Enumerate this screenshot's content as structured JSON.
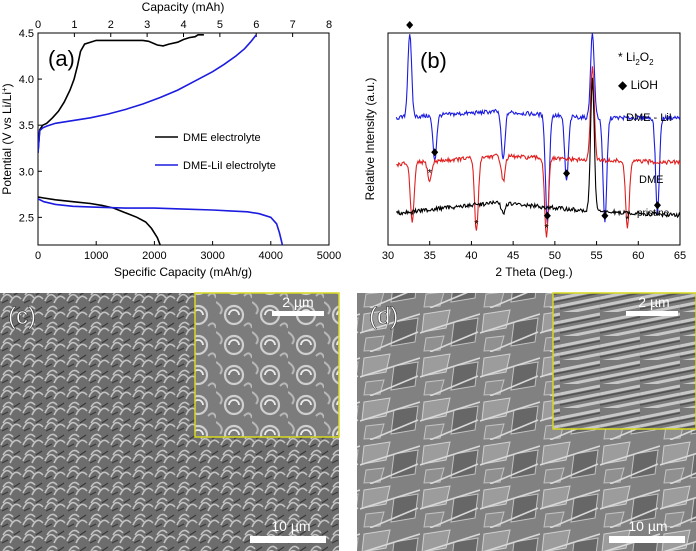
{
  "panel_a": {
    "label": "(a)",
    "top_axis_title": "Capacity (mAh)",
    "x_title": "Specific Capacity (mAh/g)",
    "y_title_parts": [
      "Potential (V vs Li/Li",
      "+",
      ")"
    ],
    "legend": [
      "DME electrolyte",
      "DME-LiI electrolyte"
    ]
  },
  "panel_b": {
    "label": "(b)",
    "x_title": "2 Theta (Deg.)",
    "y_title": "Relative Intensity (a.u.)",
    "legend_li2o2_parts": [
      "* Li",
      "2",
      "O",
      "2"
    ],
    "legend_lioh": "◆ LiOH",
    "series_labels": [
      "DME - LiI",
      "DME",
      "pristine"
    ]
  },
  "panel_c": {
    "label": "(c)",
    "scale_main": "10 µm",
    "scale_inset": "2 µm"
  },
  "panel_d": {
    "label": "(d)",
    "scale_main": "10 µm",
    "scale_inset": "2 µm"
  },
  "colors": {
    "dme": "#000000",
    "lii": "#1c1ce0",
    "red": "#e02020",
    "inset_border": "#d8d820"
  },
  "chart_data": [
    {
      "type": "line",
      "xlabel": "Specific Capacity (mAh/g)",
      "ylabel": "Potential (V vs Li/Li+)",
      "x2label": "Capacity (mAh)",
      "xlim": [
        0,
        5000
      ],
      "ylim": [
        2.2,
        4.5
      ],
      "x2lim": [
        0,
        8
      ],
      "xticks": [
        0,
        1000,
        2000,
        3000,
        4000,
        5000
      ],
      "yticks": [
        2.5,
        3.0,
        3.5,
        4.0,
        4.5
      ],
      "x2ticks": [
        0,
        1,
        2,
        3,
        4,
        5,
        6,
        7,
        8
      ],
      "legend_position": "right",
      "series": [
        {
          "name": "DME electrolyte",
          "color": "#000000",
          "segment": "discharge",
          "x": [
            0,
            100,
            300,
            600,
            900,
            1100,
            1300,
            1500,
            1700,
            1850,
            1950,
            2050,
            2100
          ],
          "y": [
            2.72,
            2.71,
            2.69,
            2.67,
            2.65,
            2.63,
            2.6,
            2.55,
            2.5,
            2.45,
            2.38,
            2.28,
            2.2
          ]
        },
        {
          "name": "DME electrolyte",
          "color": "#000000",
          "segment": "charge",
          "x": [
            0,
            30,
            80,
            150,
            250,
            350,
            450,
            550,
            620,
            680,
            730,
            800,
            900,
            1000,
            1200,
            1400,
            1600,
            1800,
            1900,
            2050,
            2150,
            2250,
            2400,
            2500,
            2600,
            2700,
            2750,
            2850
          ],
          "y": [
            3.2,
            3.45,
            3.5,
            3.52,
            3.58,
            3.65,
            3.75,
            3.88,
            4.0,
            4.15,
            4.3,
            4.38,
            4.4,
            4.42,
            4.42,
            4.42,
            4.42,
            4.42,
            4.41,
            4.37,
            4.36,
            4.38,
            4.4,
            4.43,
            4.45,
            4.46,
            4.48,
            4.48
          ]
        },
        {
          "name": "DME-LiI electrolyte",
          "color": "#1c1ce0",
          "segment": "discharge",
          "x": [
            0,
            100,
            300,
            600,
            1000,
            1500,
            2000,
            2500,
            3000,
            3300,
            3600,
            3800,
            4000,
            4100,
            4150,
            4200
          ],
          "y": [
            2.7,
            2.67,
            2.64,
            2.62,
            2.61,
            2.6,
            2.6,
            2.59,
            2.58,
            2.57,
            2.56,
            2.54,
            2.5,
            2.43,
            2.33,
            2.2
          ]
        },
        {
          "name": "DME-LiI electrolyte",
          "color": "#1c1ce0",
          "segment": "charge",
          "x": [
            0,
            30,
            80,
            150,
            300,
            600,
            900,
            1200,
            1500,
            1800,
            2100,
            2400,
            2700,
            3000,
            3200,
            3400,
            3550,
            3650,
            3750
          ],
          "y": [
            3.2,
            3.44,
            3.47,
            3.49,
            3.52,
            3.55,
            3.58,
            3.62,
            3.67,
            3.73,
            3.8,
            3.88,
            3.98,
            4.08,
            4.16,
            4.25,
            4.33,
            4.4,
            4.48
          ]
        }
      ]
    },
    {
      "type": "line",
      "xlabel": "2 Theta (Deg.)",
      "ylabel": "Relative Intensity (a.u.)",
      "xlim": [
        30,
        65
      ],
      "xticks": [
        30,
        35,
        40,
        45,
        50,
        55,
        60,
        65
      ],
      "series": [
        {
          "name": "DME - LiI",
          "color": "#1c1ce0",
          "baseline": [
            [
              31,
              0.6
            ],
            [
              43,
              0.63
            ],
            [
              54,
              0.6
            ],
            [
              65,
              0.6
            ]
          ],
          "peaks": [
            [
              32.6,
              1.0
            ],
            [
              35.6,
              0.4
            ],
            [
              43.8,
              0.4
            ],
            [
              49.1,
              0.1
            ],
            [
              51.4,
              0.3
            ],
            [
              54.5,
              1.0
            ],
            [
              56.0,
              0.1
            ],
            [
              62.3,
              0.15
            ]
          ]
        },
        {
          "name": "DME",
          "color": "#e02020",
          "baseline": [
            [
              31,
              0.38
            ],
            [
              43,
              0.42
            ],
            [
              54,
              0.4
            ],
            [
              65,
              0.39
            ]
          ],
          "peaks": [
            [
              32.9,
              0.1
            ],
            [
              35.0,
              0.3
            ],
            [
              40.6,
              0.06
            ],
            [
              43.8,
              0.3
            ],
            [
              49.0,
              0.04
            ],
            [
              54.5,
              0.85
            ],
            [
              58.7,
              0.08
            ]
          ]
        },
        {
          "name": "pristine",
          "color": "#000000",
          "baseline": [
            [
              31,
              0.15
            ],
            [
              38,
              0.18
            ],
            [
              43,
              0.2
            ],
            [
              54,
              0.16
            ],
            [
              65,
              0.14
            ]
          ],
          "peaks": [
            [
              43.8,
              0.15
            ],
            [
              54.5,
              0.78
            ]
          ]
        }
      ],
      "markers": {
        "lioh": [
          [
            32.6,
            1.0
          ],
          [
            35.6,
            0.4
          ],
          [
            49.1,
            0.1
          ],
          [
            51.4,
            0.3
          ],
          [
            56.0,
            0.1
          ],
          [
            62.3,
            0.15
          ]
        ],
        "li2o2": [
          [
            32.9,
            0.1
          ],
          [
            35.0,
            0.3
          ],
          [
            40.6,
            0.06
          ],
          [
            49.0,
            0.04
          ],
          [
            58.7,
            0.08
          ]
        ]
      }
    }
  ]
}
